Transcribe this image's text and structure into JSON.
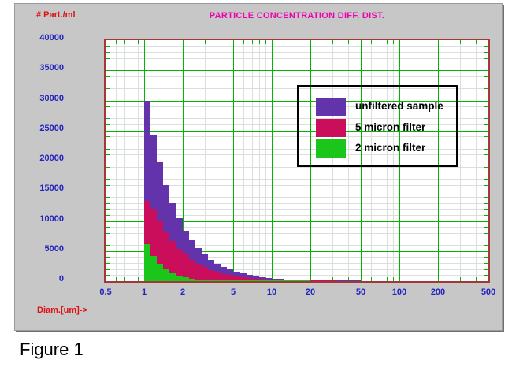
{
  "window": {
    "figure_caption": "Figure 1"
  },
  "colors": {
    "panel_bg": "#C7C7C7",
    "title_magenta": "#EC00B0",
    "axis_label_red": "#DD1111",
    "tick_label_blue": "#2222BE",
    "plot_border_red": "#A33636",
    "grid_major_green": "#00B400",
    "grid_minor_gray": "#DBDFDB",
    "legend_border": "#000000"
  },
  "chart_data": {
    "type": "bar",
    "title": "PARTICLE CONCENTRATION DIFF. DIST.",
    "ylabel": "# Part./ml",
    "xlabel": "Diam.[um]->",
    "x_scale": "log",
    "xlim": [
      0.5,
      500
    ],
    "ylim": [
      0,
      40000
    ],
    "grid": true,
    "legend_position": "upper right",
    "x_ticks": [
      "0.5",
      "1",
      "2",
      "5",
      "10",
      "20",
      "50",
      "100",
      "200",
      "500"
    ],
    "x_tick_values": [
      0.5,
      1,
      2,
      5,
      10,
      20,
      50,
      100,
      200,
      500
    ],
    "y_ticks": [
      0,
      5000,
      10000,
      15000,
      20000,
      25000,
      30000,
      35000,
      40000
    ],
    "x_major_gridlines": [
      1,
      2,
      5,
      10,
      20,
      50,
      100,
      200
    ],
    "x_minor_gridlines": [
      0.6,
      0.7,
      0.8,
      0.9,
      3,
      4,
      6,
      7,
      8,
      9,
      30,
      40,
      60,
      70,
      80,
      90,
      300,
      400
    ],
    "y_major_gridlines": [
      5000,
      10000,
      15000,
      20000,
      25000,
      30000,
      35000
    ],
    "y_minor_step": 1000,
    "bins": {
      "start": 1.0,
      "per_decade": 20
    },
    "series": [
      {
        "name": "unfiltered sample",
        "color": "#6233AB",
        "values": [
          30000,
          24300,
          19700,
          15900,
          12900,
          10400,
          8400,
          6800,
          5500,
          4450,
          3600,
          2920,
          2360,
          1910,
          1550,
          1250,
          1010,
          820,
          660,
          540,
          435,
          350,
          285,
          230,
          185,
          150,
          120,
          98,
          79,
          64,
          52,
          42,
          34,
          28
        ]
      },
      {
        "name": "5 micron filter",
        "color": "#CB0E5C",
        "values": [
          13300,
          12000,
          10100,
          8300,
          6700,
          5400,
          4400,
          3550,
          2870,
          2320,
          1880,
          1520,
          1230,
          990,
          800,
          650,
          520,
          420,
          340,
          275,
          220,
          180,
          145,
          115,
          93,
          75,
          60,
          49,
          39,
          32
        ]
      },
      {
        "name": "2 micron filter",
        "color": "#19C619",
        "values": [
          6100,
          4150,
          2850,
          1950,
          1340,
          920,
          630,
          430,
          295,
          200,
          140,
          95,
          65,
          45,
          31,
          21,
          14,
          10,
          7,
          5,
          3,
          2,
          2,
          1,
          1,
          1
        ]
      }
    ]
  }
}
